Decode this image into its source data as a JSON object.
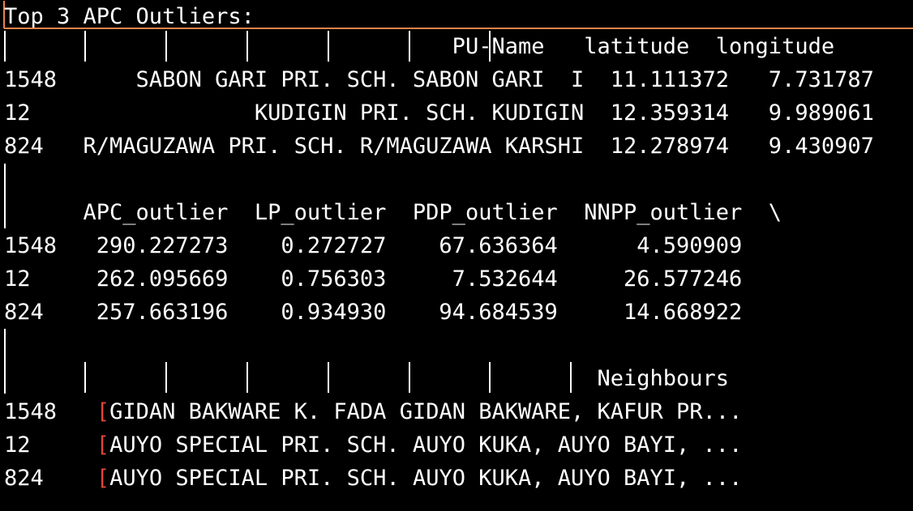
{
  "title": "Top 3 APC Outliers:",
  "block1": {
    "header": "                                  PU-Name   latitude  longitude",
    "rows": [
      "1548      SABON GARI PRI. SCH. SABON GARI  I  11.111372   7.731787",
      "12                 KUDIGIN PRI. SCH. KUDIGIN  12.359314   9.989061",
      "824   R/MAGUZAWA PRI. SCH. R/MAGUZAWA KARSHI  12.278974   9.430907"
    ]
  },
  "block2": {
    "header": "      APC_outlier  LP_outlier  PDP_outlier  NNPP_outlier  \\",
    "rows": [
      "1548   290.227273    0.272727    67.636364      4.590909",
      "12     262.095669    0.756303     7.532644     26.577246",
      "824    257.663196    0.934930    94.684539     14.668922"
    ]
  },
  "block3": {
    "header": "                                             Neighbours",
    "rows": [
      {
        "index": "1548",
        "bracket": "[",
        "text": "GIDAN BAKWARE K. FADA GIDAN BAKWARE, KAFUR PR..."
      },
      {
        "index": "12",
        "bracket": "[",
        "text": "AUYO SPECIAL PRI. SCH. AUYO KUKA, AUYO BAYI, ..."
      },
      {
        "index": "824",
        "bracket": "[",
        "text": "AUYO SPECIAL PRI. SCH. AUYO KUKA, AUYO BAYI, ..."
      }
    ]
  },
  "colors": {
    "background": "#000000",
    "text": "#ffffff",
    "accent_rule": "#e8824a",
    "bracket": "#e0453a"
  }
}
